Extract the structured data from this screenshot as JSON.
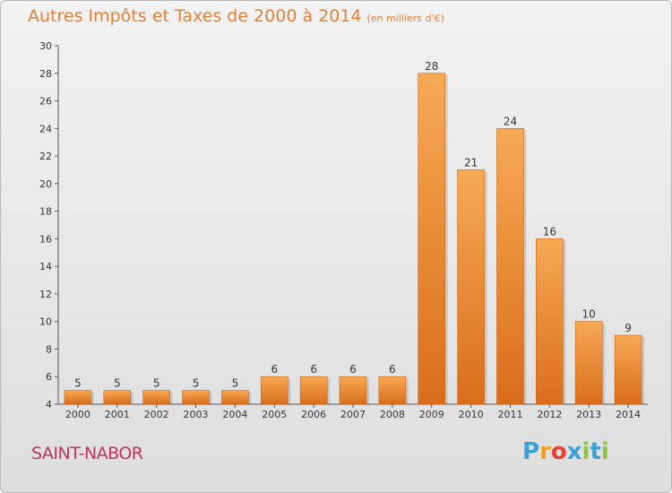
{
  "title": "Autres Impôts et Taxes de 2000 à 2014",
  "unit": "(en milliers d'€)",
  "city": "SAINT-NABOR",
  "logo": {
    "text": "Proxiti",
    "colors": [
      "#3aa0d8",
      "#f0a020",
      "#e84030",
      "#3aa0d8",
      "#8cc63f",
      "#3aa0d8",
      "#8cc63f"
    ]
  },
  "colors": {
    "bar_top": "#f7a954",
    "bar_bottom": "#d96d1c",
    "title": "#e0823a",
    "city": "#c0335a"
  },
  "chart_data": {
    "type": "bar",
    "title": "Autres Impôts et Taxes de 2000 à 2014",
    "subtitle": "(en milliers d'€)",
    "xlabel": "",
    "ylabel": "",
    "categories": [
      "2000",
      "2001",
      "2002",
      "2003",
      "2004",
      "2005",
      "2006",
      "2007",
      "2008",
      "2009",
      "2010",
      "2011",
      "2012",
      "2013",
      "2014"
    ],
    "values": [
      5,
      5,
      5,
      5,
      5,
      6,
      6,
      6,
      6,
      28,
      21,
      24,
      16,
      10,
      9
    ],
    "ylim": [
      4,
      30
    ],
    "yticks": [
      4,
      6,
      8,
      10,
      12,
      14,
      16,
      18,
      20,
      22,
      24,
      26,
      28,
      30
    ],
    "grid": false,
    "data_labels": true
  }
}
